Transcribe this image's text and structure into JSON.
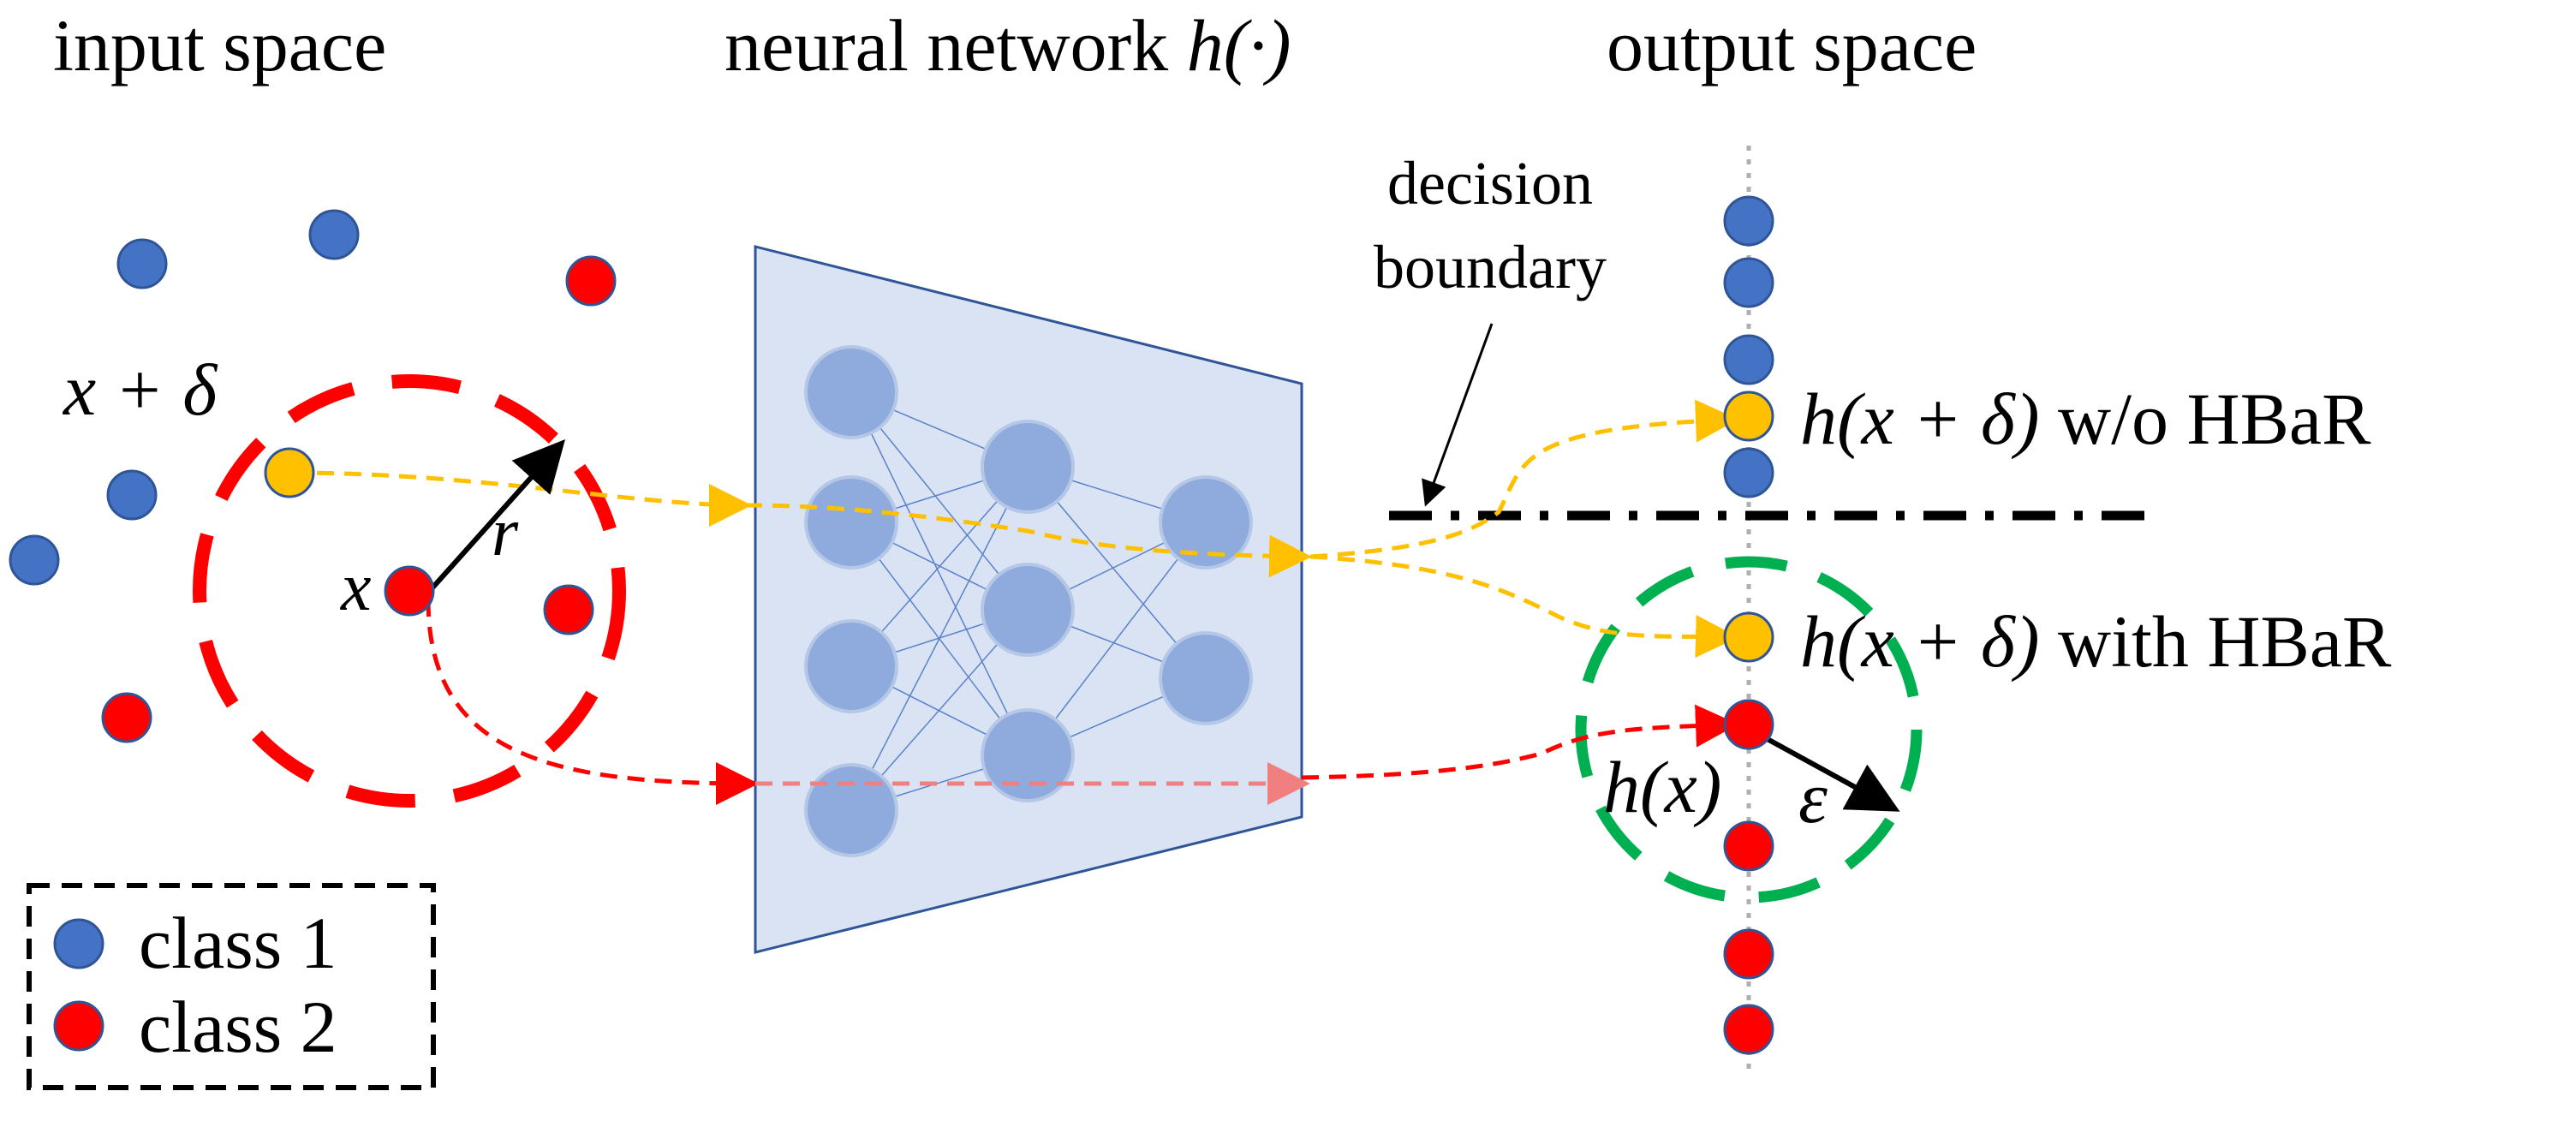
{
  "headings": {
    "input": "input space",
    "network_prefix": "neural network ",
    "network_func": "h(·)",
    "output": "output space"
  },
  "labels": {
    "decision_line1": "decision",
    "decision_line2": "boundary",
    "x_plus_delta": "x + δ",
    "x": "x",
    "r": "r",
    "hx": "h(x)",
    "epsilon": "ε",
    "without_math": "h(x + δ)",
    "without_text": " w/o HBaR",
    "with_math": "h(x + δ)",
    "with_text": " with HBaR"
  },
  "legend": {
    "items": [
      {
        "label": "class 1",
        "color": "#4472C4"
      },
      {
        "label": "class 2",
        "color": "#FF0000"
      }
    ]
  },
  "colors": {
    "class1": "#4472C4",
    "class2": "#FF0000",
    "perturbed": "#FFC000",
    "input_ball": "#FF0000",
    "output_ball": "#00B050",
    "network_fill": "#DAE3F3",
    "network_stroke": "#2F5597",
    "neuron": "#8FAADC"
  }
}
